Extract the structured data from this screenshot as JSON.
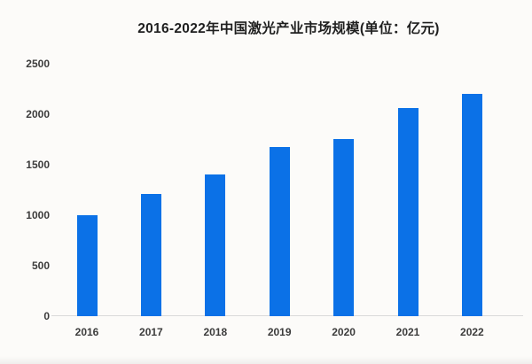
{
  "chart": {
    "title": "2016-2022年中国激光产业市场规模(单位：亿元)"
  },
  "chart_data": {
    "type": "bar",
    "title": "2016-2022年中国激光产业市场规模(单位：亿元)",
    "categories": [
      "2016",
      "2017",
      "2018",
      "2019",
      "2020",
      "2021",
      "2022"
    ],
    "values": [
      1000,
      1210,
      1400,
      1670,
      1755,
      2060,
      2195
    ],
    "unit": "亿元",
    "xlabel": "",
    "ylabel": "",
    "ylim": [
      0,
      2500
    ],
    "yticks": [
      0,
      500,
      1000,
      1500,
      2000,
      2500
    ],
    "grid": false,
    "legend": "none",
    "bar_color": "#0b71e7",
    "background_color": "#fcfbf9",
    "axis_line_color": "#d9d9d9",
    "tick_label_color": "#3c3c3c",
    "title_color": "#1f1f1f"
  }
}
